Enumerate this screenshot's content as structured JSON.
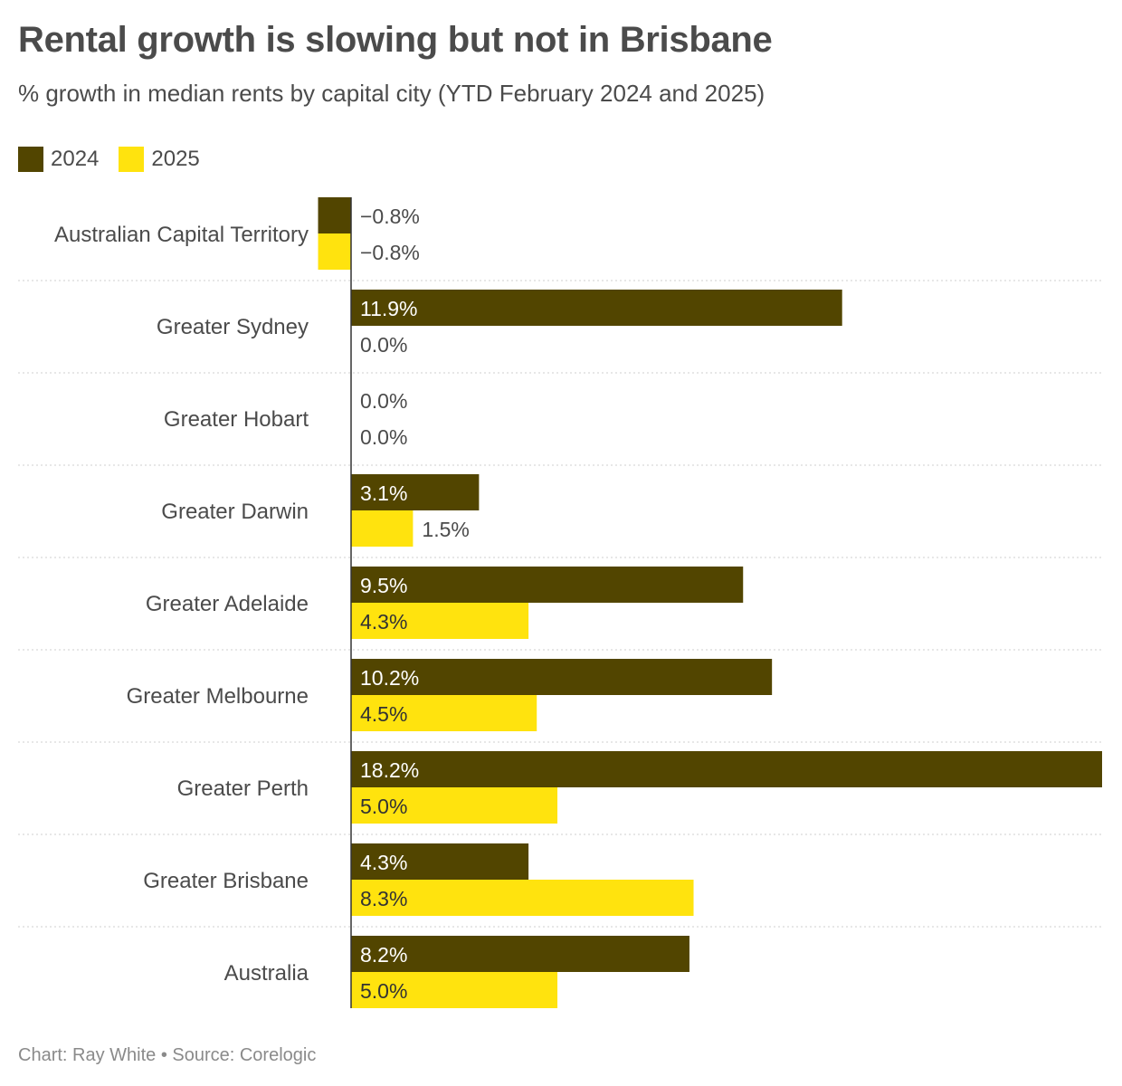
{
  "header": {
    "title": "Rental growth is slowing but not in Brisbane",
    "subtitle": "% growth in median rents by capital city (YTD February 2024 and 2025)"
  },
  "footer": {
    "credit": "Chart: Ray White • Source: Corelogic"
  },
  "chart_data": {
    "type": "bar",
    "orientation": "horizontal",
    "title": "Rental growth is slowing but not in Brisbane",
    "subtitle": "% growth in median rents by capital city (YTD February 2024 and 2025)",
    "categories": [
      "Australian Capital Territory",
      "Greater Sydney",
      "Greater Hobart",
      "Greater Darwin",
      "Greater Adelaide",
      "Greater Melbourne",
      "Greater Perth",
      "Greater Brisbane",
      "Australia"
    ],
    "series": [
      {
        "name": "2024",
        "color": "#524500",
        "values": [
          -0.8,
          11.9,
          0.0,
          3.1,
          9.5,
          10.2,
          18.2,
          4.3,
          8.2
        ],
        "labels": [
          "−0.8%",
          "11.9%",
          "0.0%",
          "3.1%",
          "9.5%",
          "10.2%",
          "18.2%",
          "4.3%",
          "8.2%"
        ]
      },
      {
        "name": "2025",
        "color": "#ffe30e",
        "values": [
          -0.8,
          0.0,
          0.0,
          1.5,
          4.3,
          4.5,
          5.0,
          8.3,
          5.0
        ],
        "labels": [
          "−0.8%",
          "0.0%",
          "0.0%",
          "1.5%",
          "4.3%",
          "4.5%",
          "5.0%",
          "8.3%",
          "5.0%"
        ]
      }
    ],
    "xlim": [
      -0.8,
      18.2
    ],
    "legend": "top-left",
    "grid": false
  }
}
